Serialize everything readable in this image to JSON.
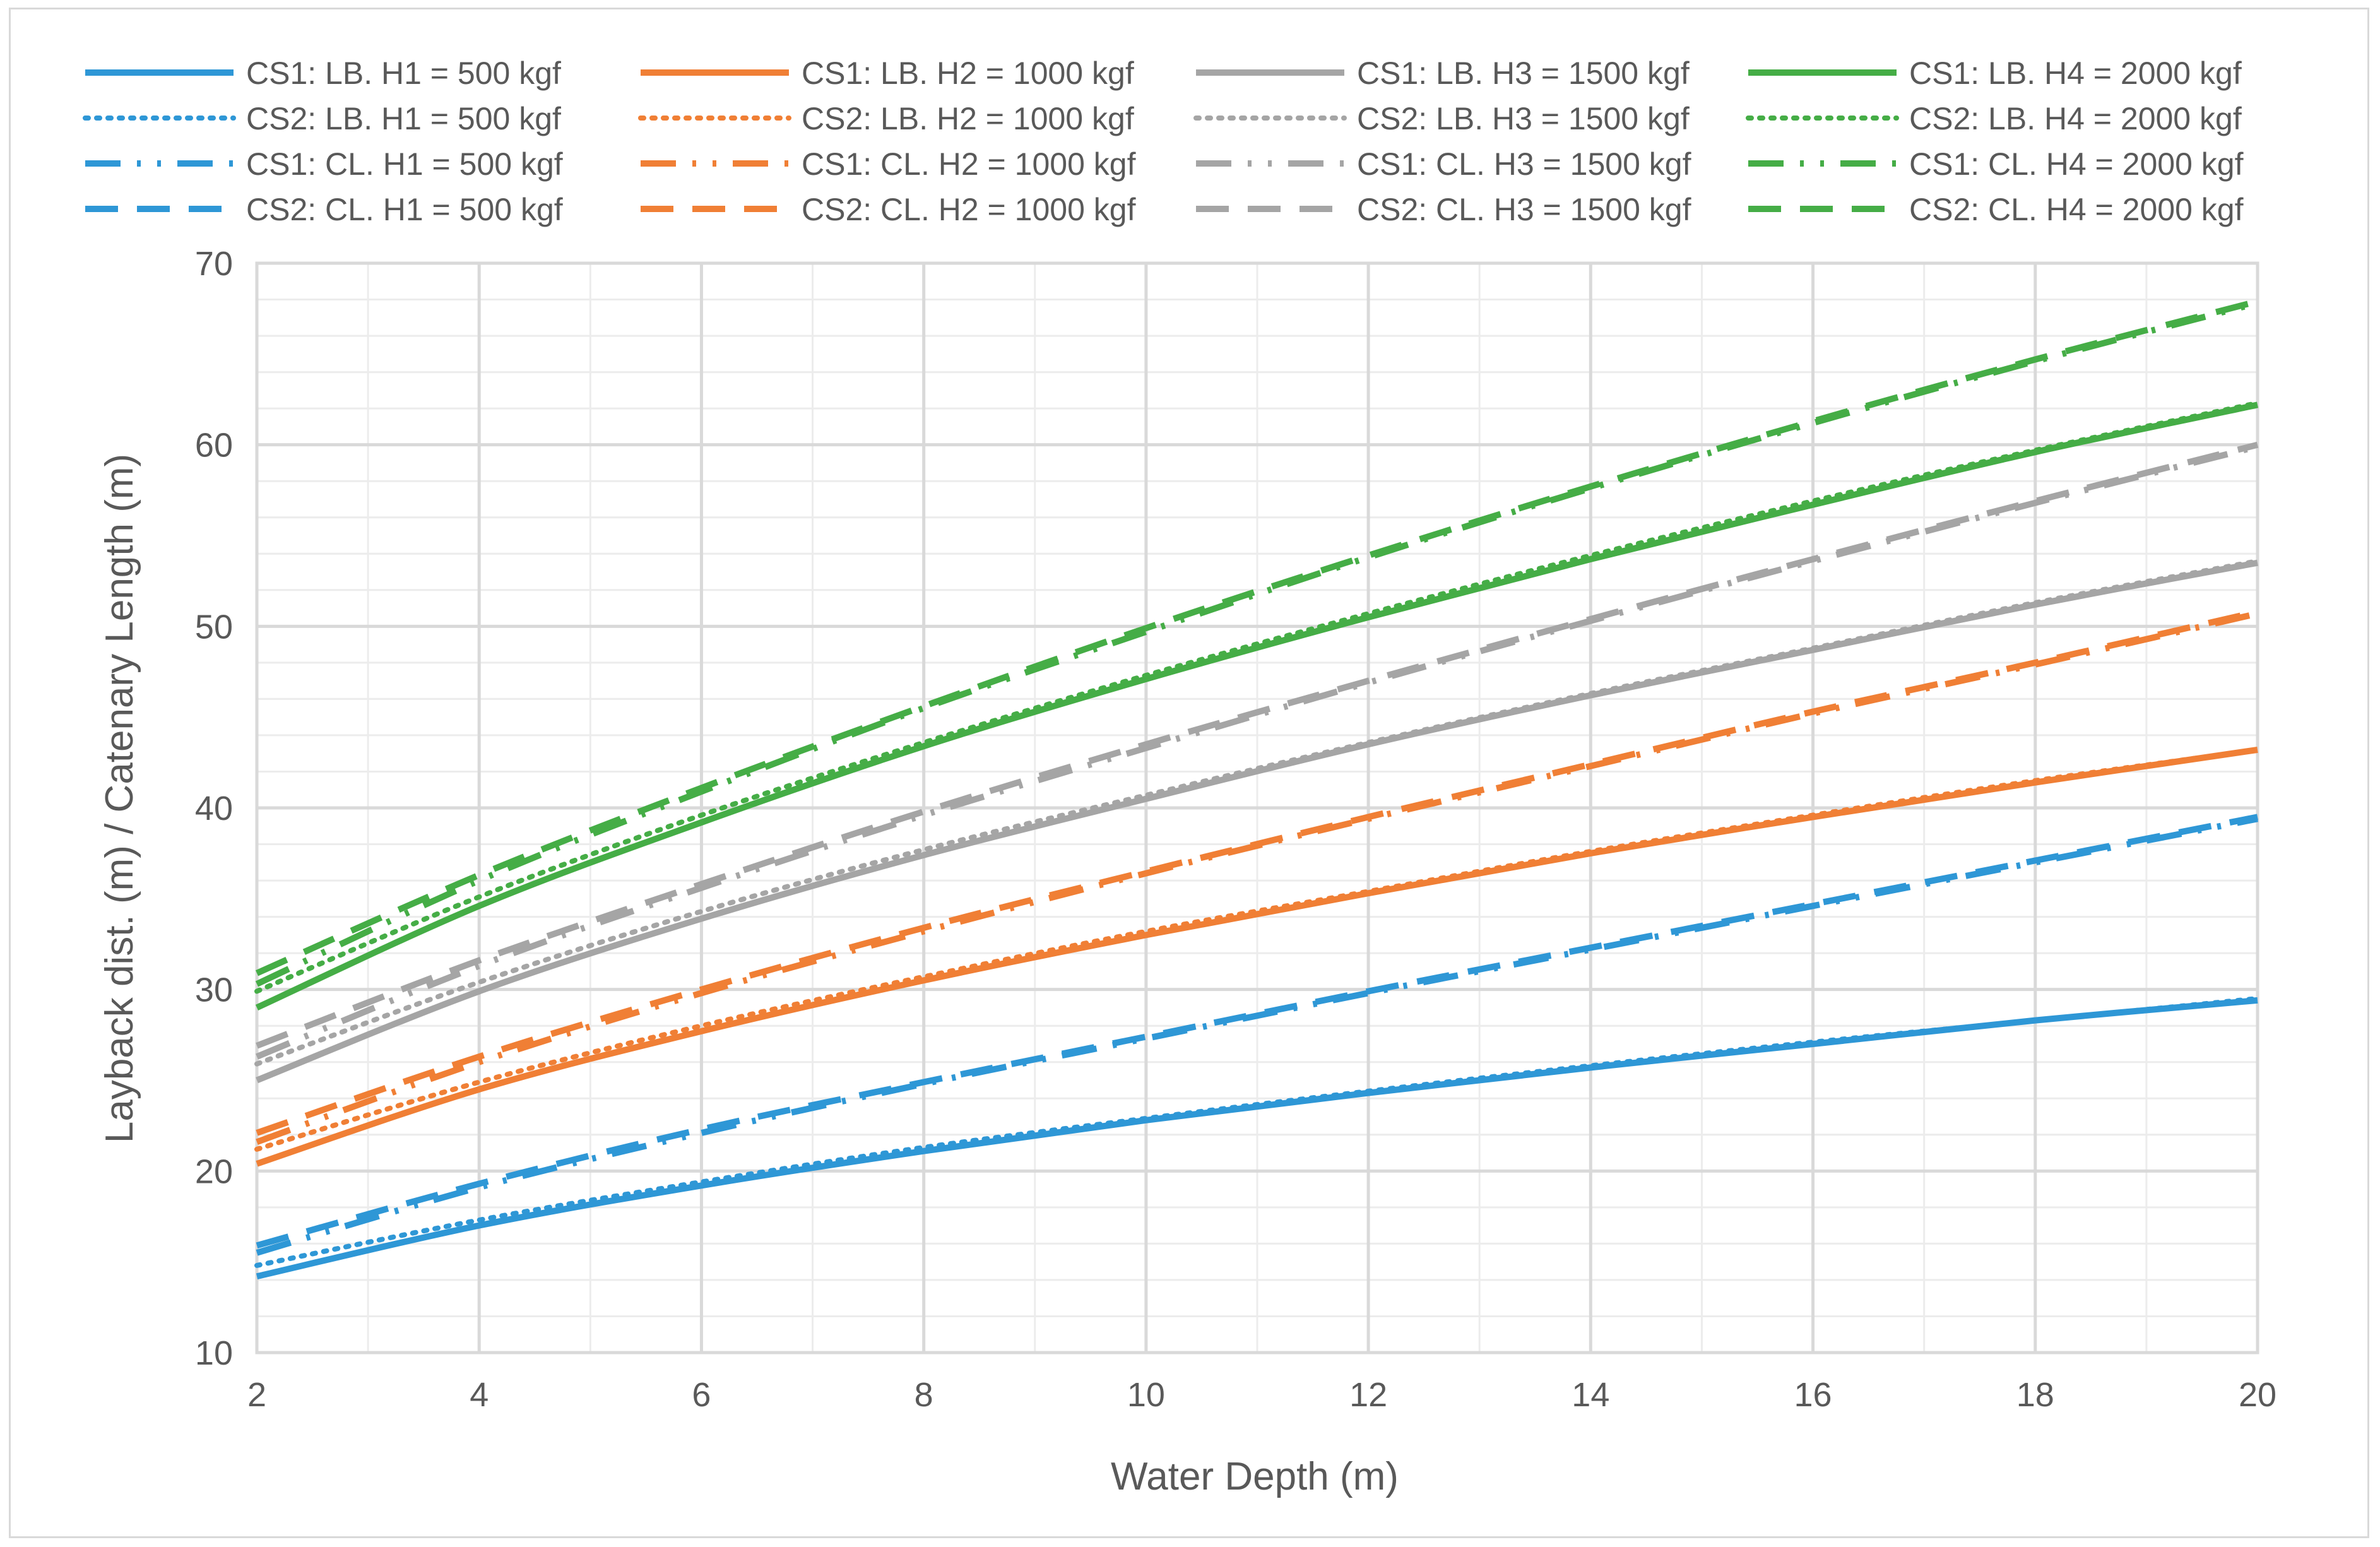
{
  "chart_data": {
    "type": "line",
    "xlabel": "Water Depth (m)",
    "ylabel": "Layback dist. (m) / Catenary Length (m)",
    "xlim": [
      2,
      20
    ],
    "ylim": [
      10,
      70
    ],
    "x_major_ticks": [
      2,
      4,
      6,
      8,
      10,
      12,
      14,
      16,
      18,
      20
    ],
    "x_minor_step": 1,
    "y_major_ticks": [
      10,
      20,
      30,
      40,
      50,
      60,
      70
    ],
    "y_minor_step": 2,
    "grid": true,
    "legend_position": "top",
    "x": [
      2,
      4,
      6,
      8,
      10,
      12,
      14,
      16,
      18,
      20
    ],
    "series": [
      {
        "name": "CS1: LB. H1 = 500 kgf",
        "color": "#2e97d6",
        "dash": "solid",
        "values": [
          14.2,
          17.0,
          19.2,
          21.1,
          22.8,
          24.3,
          25.7,
          27.0,
          28.3,
          29.4
        ]
      },
      {
        "name": "CS2: LB. H1 = 500 kgf",
        "color": "#2e97d6",
        "dash": "dot",
        "values": [
          14.8,
          17.3,
          19.4,
          21.3,
          22.9,
          24.4,
          25.8,
          27.1,
          28.3,
          29.5
        ]
      },
      {
        "name": "CS1: CL. H1 = 500 kgf",
        "color": "#2e97d6",
        "dash": "dashdotdot",
        "values": [
          15.5,
          19.1,
          22.1,
          24.8,
          27.3,
          29.8,
          32.2,
          34.6,
          37.0,
          39.4
        ]
      },
      {
        "name": "CS2: CL. H1 = 500 kgf",
        "color": "#2e97d6",
        "dash": "dash",
        "values": [
          15.9,
          19.3,
          22.3,
          24.9,
          27.4,
          29.9,
          32.3,
          34.7,
          37.1,
          39.5
        ]
      },
      {
        "name": "CS1: LB. H2 = 1000 kgf",
        "color": "#f07f35",
        "dash": "solid",
        "values": [
          20.4,
          24.5,
          27.7,
          30.5,
          33.0,
          35.3,
          37.5,
          39.5,
          41.4,
          43.2
        ]
      },
      {
        "name": "CS2: LB. H2 = 1000 kgf",
        "color": "#f07f35",
        "dash": "dot",
        "values": [
          21.2,
          24.9,
          28.0,
          30.7,
          33.2,
          35.4,
          37.6,
          39.6,
          41.5,
          43.2
        ]
      },
      {
        "name": "CS1: CL. H2 = 1000 kgf",
        "color": "#f07f35",
        "dash": "dashdotdot",
        "values": [
          21.6,
          26.0,
          29.8,
          33.2,
          36.4,
          39.4,
          42.3,
          45.2,
          47.9,
          50.7
        ]
      },
      {
        "name": "CS2: CL. H2 = 1000 kgf",
        "color": "#f07f35",
        "dash": "dash",
        "values": [
          22.1,
          26.3,
          30.0,
          33.4,
          36.5,
          39.5,
          42.4,
          45.3,
          48.0,
          50.8
        ]
      },
      {
        "name": "CS1: LB. H3 = 1500 kgf",
        "color": "#a5a5a5",
        "dash": "solid",
        "values": [
          25.0,
          29.9,
          33.9,
          37.4,
          40.5,
          43.5,
          46.2,
          48.7,
          51.2,
          53.5
        ]
      },
      {
        "name": "CS2: LB. H3 = 1500 kgf",
        "color": "#a5a5a5",
        "dash": "dot",
        "values": [
          25.9,
          30.4,
          34.3,
          37.7,
          40.7,
          43.6,
          46.3,
          48.8,
          51.3,
          53.6
        ]
      },
      {
        "name": "CS1: CL. H3 = 1500 kgf",
        "color": "#a5a5a5",
        "dash": "dashdotdot",
        "values": [
          26.3,
          31.3,
          35.6,
          39.6,
          43.3,
          46.9,
          50.3,
          53.6,
          56.8,
          59.9
        ]
      },
      {
        "name": "CS2: CL. H3 = 1500 kgf",
        "color": "#a5a5a5",
        "dash": "dash",
        "values": [
          26.9,
          31.6,
          35.8,
          39.8,
          43.5,
          47.0,
          50.4,
          53.7,
          56.9,
          60.0
        ]
      },
      {
        "name": "CS1: LB. H4 = 2000 kgf",
        "color": "#45ad46",
        "dash": "solid",
        "values": [
          29.0,
          34.6,
          39.2,
          43.4,
          47.1,
          50.5,
          53.7,
          56.7,
          59.6,
          62.2
        ]
      },
      {
        "name": "CS2: LB. H4 = 2000 kgf",
        "color": "#45ad46",
        "dash": "dot",
        "values": [
          29.9,
          35.1,
          39.6,
          43.6,
          47.3,
          50.7,
          53.9,
          56.9,
          59.7,
          62.3
        ]
      },
      {
        "name": "CS1: CL. H4 = 2000 kgf",
        "color": "#45ad46",
        "dash": "dashdotdot",
        "values": [
          30.3,
          36.0,
          40.9,
          45.5,
          49.7,
          53.8,
          57.6,
          61.2,
          64.6,
          67.8
        ]
      },
      {
        "name": "CS2: CL. H4 = 2000 kgf",
        "color": "#45ad46",
        "dash": "dash",
        "values": [
          30.9,
          36.3,
          41.1,
          45.6,
          49.9,
          53.9,
          57.7,
          61.3,
          64.7,
          67.9
        ]
      }
    ]
  }
}
